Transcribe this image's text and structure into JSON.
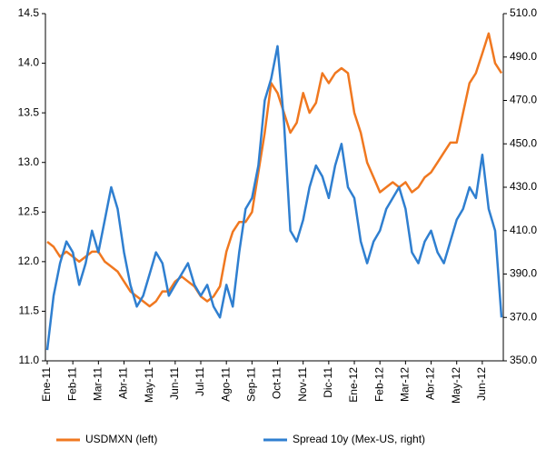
{
  "chart_data": {
    "type": "line",
    "categories": [
      "Ene-11",
      null,
      null,
      null,
      "Feb-11",
      null,
      null,
      null,
      "Mar-11",
      null,
      null,
      null,
      "Abr-11",
      null,
      null,
      null,
      "May-11",
      null,
      null,
      null,
      "Jun-11",
      null,
      null,
      null,
      "Jul-11",
      null,
      null,
      null,
      "Ago-11",
      null,
      null,
      null,
      "Sep-11",
      null,
      null,
      null,
      "Oct-11",
      null,
      null,
      null,
      "Nov-11",
      null,
      null,
      null,
      "Dic-11",
      null,
      null,
      null,
      "Ene-12",
      null,
      null,
      null,
      "Feb-12",
      null,
      null,
      null,
      "Mar-12",
      null,
      null,
      null,
      "Abr-12",
      null,
      null,
      null,
      "May-12",
      null,
      null,
      null,
      "Jun-12",
      null,
      null,
      null
    ],
    "series": [
      {
        "name": "USDMXN (left)",
        "color": "#f07820",
        "axis": "y",
        "values": [
          12.2,
          12.15,
          12.05,
          12.1,
          12.05,
          12.0,
          12.05,
          12.1,
          12.1,
          12.0,
          11.95,
          11.9,
          11.8,
          11.7,
          11.65,
          11.6,
          11.55,
          11.6,
          11.7,
          11.7,
          11.8,
          11.85,
          11.8,
          11.75,
          11.65,
          11.6,
          11.65,
          11.75,
          12.1,
          12.3,
          12.4,
          12.4,
          12.5,
          12.9,
          13.3,
          13.8,
          13.7,
          13.5,
          13.3,
          13.4,
          13.7,
          13.5,
          13.6,
          13.9,
          13.8,
          13.9,
          13.95,
          13.9,
          13.5,
          13.3,
          13.0,
          12.85,
          12.7,
          12.75,
          12.8,
          12.75,
          12.8,
          12.7,
          12.75,
          12.85,
          12.9,
          13.0,
          13.1,
          13.2,
          13.2,
          13.5,
          13.8,
          13.9,
          14.1,
          14.3,
          14.0,
          13.9
        ]
      },
      {
        "name": "Spread 10y (Mex-US, right)",
        "color": "#2f7fd0",
        "axis": "y2",
        "values": [
          355,
          380,
          395,
          405,
          400,
          385,
          395,
          410,
          400,
          415,
          430,
          420,
          400,
          385,
          375,
          380,
          390,
          400,
          395,
          380,
          385,
          390,
          395,
          385,
          380,
          385,
          375,
          370,
          385,
          375,
          400,
          420,
          425,
          440,
          470,
          480,
          495,
          460,
          410,
          405,
          415,
          430,
          440,
          435,
          425,
          440,
          450,
          430,
          425,
          405,
          395,
          405,
          410,
          420,
          425,
          430,
          420,
          400,
          395,
          405,
          410,
          400,
          395,
          405,
          415,
          420,
          430,
          425,
          445,
          420,
          410,
          370
        ]
      }
    ],
    "ylim": [
      11,
      14.5
    ],
    "yticks": [
      {
        "value": 11,
        "label": "11.0"
      },
      11.5,
      {
        "value": 12,
        "label": "12.0"
      },
      12.5,
      {
        "value": 13,
        "label": "13.0"
      },
      13.5,
      {
        "value": 14,
        "label": "14.0"
      },
      14.5
    ],
    "y2lim": [
      350,
      510
    ],
    "y2ticks": [
      {
        "value": 350,
        "label": "350.0"
      },
      {
        "value": 370,
        "label": "370.0"
      },
      {
        "value": 390,
        "label": "390.0"
      },
      {
        "value": 410,
        "label": "410.0"
      },
      {
        "value": 430,
        "label": "430.0"
      },
      {
        "value": 450,
        "label": "450.0"
      },
      {
        "value": 470,
        "label": "470.0"
      },
      {
        "value": 490,
        "label": "490.0"
      },
      {
        "value": 510,
        "label": "510.0"
      }
    ],
    "grid": false,
    "legend": "bottom"
  }
}
